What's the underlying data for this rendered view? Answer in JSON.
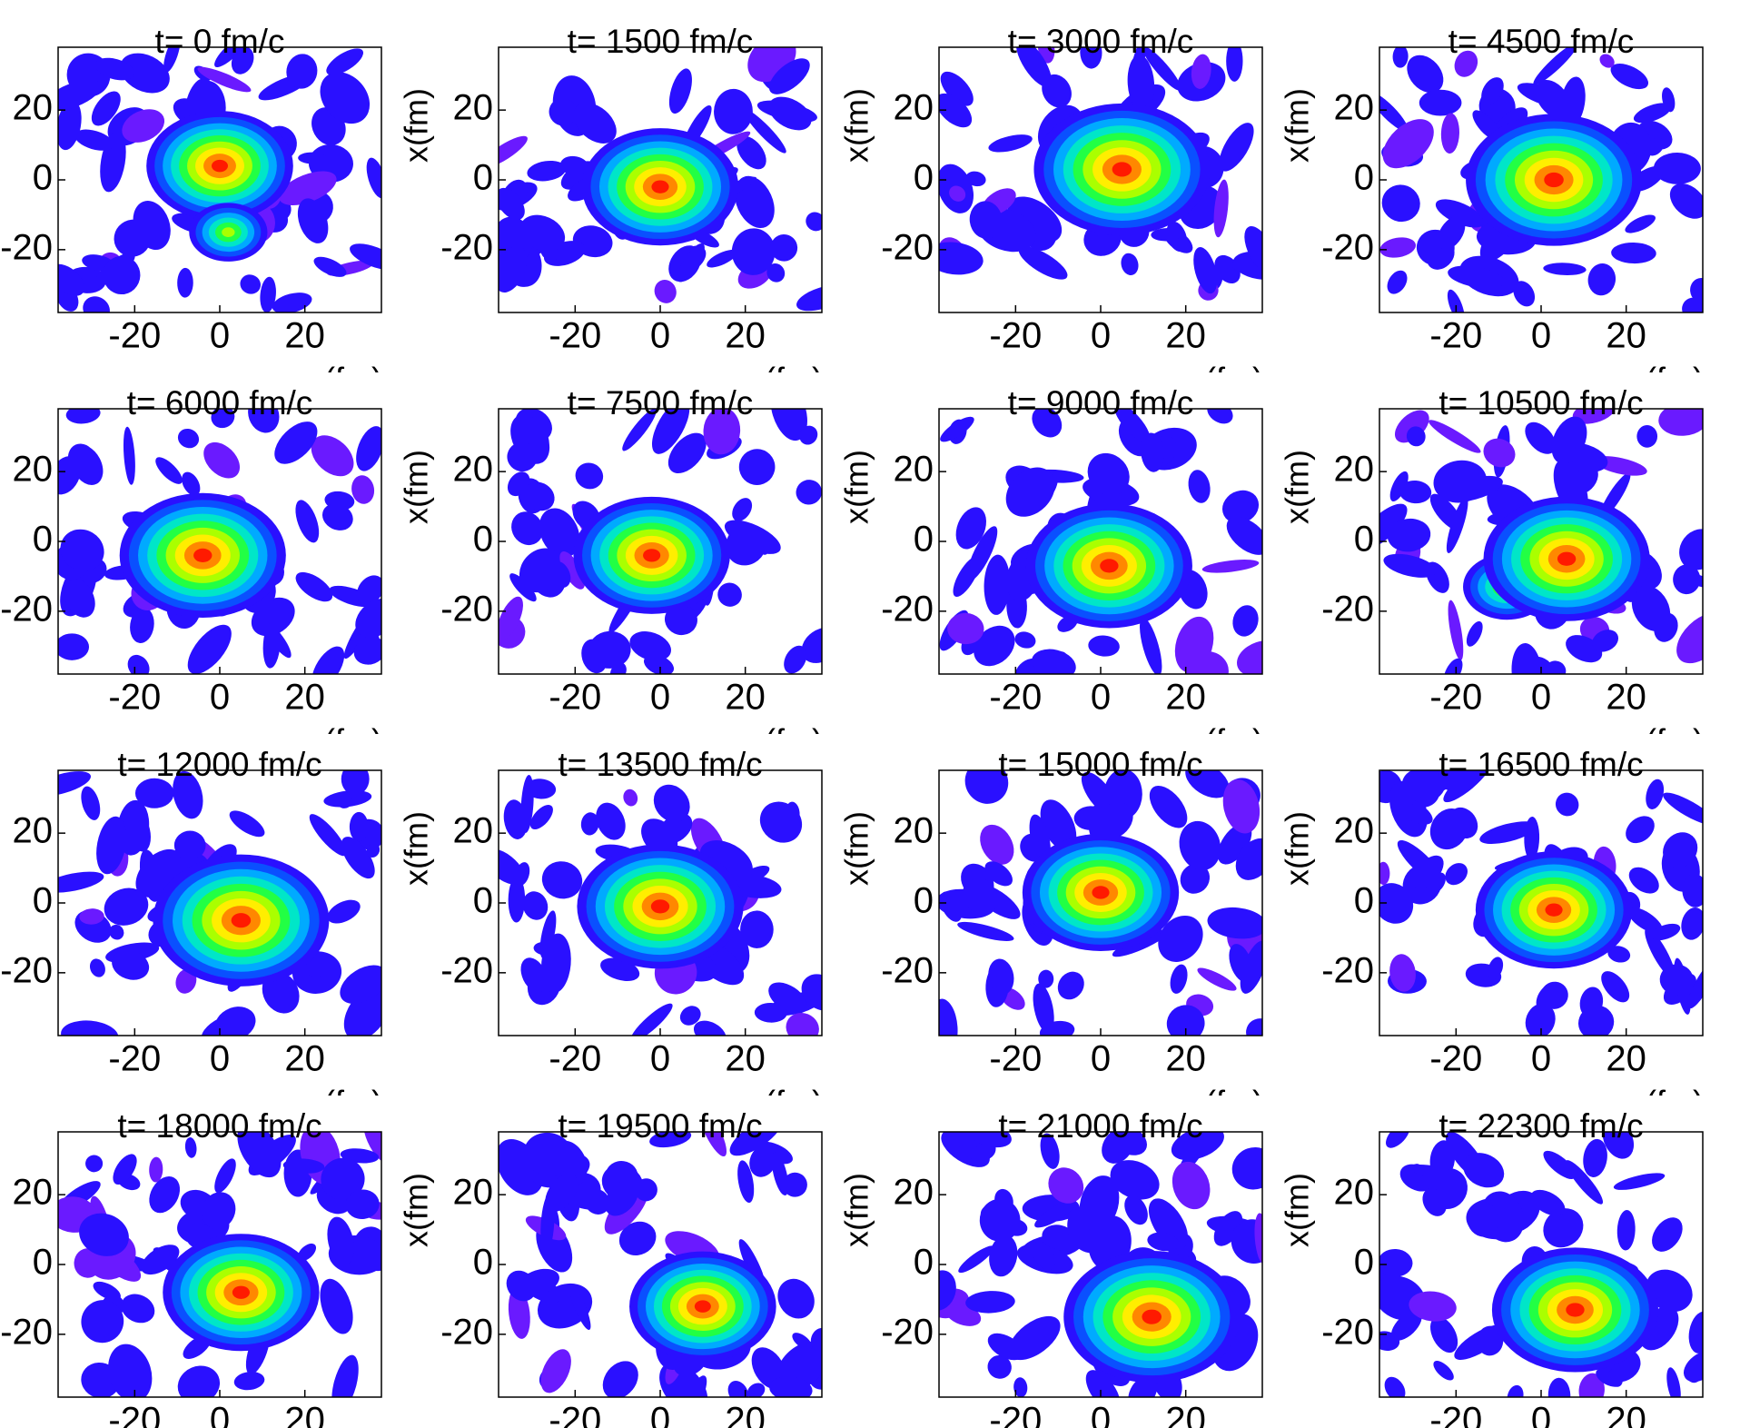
{
  "chart_data": [
    {
      "type": "contour",
      "title": "t= 0 fm/c",
      "xlabel": "z(fm)",
      "xlim": [
        -38,
        38
      ],
      "ylim": [
        -38,
        38
      ],
      "xticks": [
        -20,
        0,
        20
      ],
      "yticks": [
        -20,
        0,
        20
      ],
      "peaks": [
        {
          "x": 0,
          "y": 4,
          "r": 15
        },
        {
          "x": 2,
          "y": -15,
          "r": 8
        }
      ]
    },
    {
      "type": "contour",
      "title": "t= 1500 fm/c",
      "xlabel": "z(fm)",
      "ylabel": "x(fm)",
      "xlim": [
        -38,
        38
      ],
      "ylim": [
        -38,
        38
      ],
      "xticks": [
        -20,
        0,
        20
      ],
      "yticks": [
        -20,
        0,
        20
      ],
      "peaks": [
        {
          "x": 0,
          "y": -2,
          "r": 16
        }
      ]
    },
    {
      "type": "contour",
      "title": "t= 3000 fm/c",
      "xlabel": "z(fm)",
      "ylabel": "x(fm)",
      "xlim": [
        -38,
        38
      ],
      "ylim": [
        -38,
        38
      ],
      "xticks": [
        -20,
        0,
        20
      ],
      "yticks": [
        -20,
        0,
        20
      ],
      "peaks": [
        {
          "x": 5,
          "y": 3,
          "r": 18
        }
      ]
    },
    {
      "type": "contour",
      "title": "t= 4500 fm/c",
      "xlabel": "z(fm)",
      "ylabel": "x(fm)",
      "xlim": [
        -38,
        38
      ],
      "ylim": [
        -38,
        38
      ],
      "xticks": [
        -20,
        0,
        20
      ],
      "yticks": [
        -20,
        0,
        20
      ],
      "peaks": [
        {
          "x": 3,
          "y": 0,
          "r": 18
        }
      ]
    },
    {
      "type": "contour",
      "title": "t= 6000 fm/c",
      "xlabel": "z(fm)",
      "xlim": [
        -38,
        38
      ],
      "ylim": [
        -38,
        38
      ],
      "xticks": [
        -20,
        0,
        20
      ],
      "yticks": [
        -20,
        0,
        20
      ],
      "peaks": [
        {
          "x": -4,
          "y": -4,
          "r": 17
        }
      ]
    },
    {
      "type": "contour",
      "title": "t= 7500 fm/c",
      "xlabel": "z(fm)",
      "ylabel": "x(fm)",
      "xlim": [
        -38,
        38
      ],
      "ylim": [
        -38,
        38
      ],
      "xticks": [
        -20,
        0,
        20
      ],
      "yticks": [
        -20,
        0,
        20
      ],
      "peaks": [
        {
          "x": -2,
          "y": -4,
          "r": 16
        }
      ]
    },
    {
      "type": "contour",
      "title": "t= 9000 fm/c",
      "xlabel": "z(fm)",
      "ylabel": "x(fm)",
      "xlim": [
        -38,
        38
      ],
      "ylim": [
        -38,
        38
      ],
      "xticks": [
        -20,
        0,
        20
      ],
      "yticks": [
        -20,
        0,
        20
      ],
      "peaks": [
        {
          "x": 2,
          "y": -7,
          "r": 17
        }
      ]
    },
    {
      "type": "contour",
      "title": "t= 10500 fm/c",
      "xlabel": "z(fm)",
      "ylabel": "x(fm)",
      "xlim": [
        -38,
        38
      ],
      "ylim": [
        -38,
        38
      ],
      "xticks": [
        -20,
        0,
        20
      ],
      "yticks": [
        -20,
        0,
        20
      ],
      "peaks": [
        {
          "x": -8,
          "y": -13,
          "r": 9
        },
        {
          "x": 6,
          "y": -5,
          "r": 17
        }
      ]
    },
    {
      "type": "contour",
      "title": "t= 12000 fm/c",
      "xlabel": "z(fm)",
      "xlim": [
        -38,
        38
      ],
      "ylim": [
        -38,
        38
      ],
      "xticks": [
        -20,
        0,
        20
      ],
      "yticks": [
        -20,
        0,
        20
      ],
      "peaks": [
        {
          "x": 5,
          "y": -5,
          "r": 18
        }
      ]
    },
    {
      "type": "contour",
      "title": "t= 13500 fm/c",
      "xlabel": "z(fm)",
      "ylabel": "x(fm)",
      "xlim": [
        -38,
        38
      ],
      "ylim": [
        -38,
        38
      ],
      "xticks": [
        -20,
        0,
        20
      ],
      "yticks": [
        -20,
        0,
        20
      ],
      "peaks": [
        {
          "x": 0,
          "y": -1,
          "r": 17
        }
      ]
    },
    {
      "type": "contour",
      "title": "t= 15000 fm/c",
      "xlabel": "z(fm)",
      "ylabel": "x(fm)",
      "xlim": [
        -38,
        38
      ],
      "ylim": [
        -38,
        38
      ],
      "xticks": [
        -20,
        0,
        20
      ],
      "yticks": [
        -20,
        0,
        20
      ],
      "peaks": [
        {
          "x": 0,
          "y": 3,
          "r": 16
        }
      ]
    },
    {
      "type": "contour",
      "title": "t= 16500 fm/c",
      "xlabel": "z(fm)",
      "ylabel": "x(fm)",
      "xlim": [
        -38,
        38
      ],
      "ylim": [
        -38,
        38
      ],
      "xticks": [
        -20,
        0,
        20
      ],
      "yticks": [
        -20,
        0,
        20
      ],
      "peaks": [
        {
          "x": 3,
          "y": -2,
          "r": 16
        }
      ]
    },
    {
      "type": "contour",
      "title": "t= 18000 fm/c",
      "xlim": [
        -38,
        38
      ],
      "ylim": [
        -38,
        38
      ],
      "xticks": [
        -20,
        0,
        20
      ],
      "yticks": [
        -20,
        0,
        20
      ],
      "peaks": [
        {
          "x": 5,
          "y": -8,
          "r": 16
        }
      ]
    },
    {
      "type": "contour",
      "title": "t= 19500 fm/c",
      "ylabel": "x(fm)",
      "xlim": [
        -38,
        38
      ],
      "ylim": [
        -38,
        38
      ],
      "xticks": [
        -20,
        0,
        20
      ],
      "yticks": [
        -20,
        0,
        20
      ],
      "peaks": [
        {
          "x": 10,
          "y": -12,
          "r": 15
        }
      ]
    },
    {
      "type": "contour",
      "title": "t= 21000 fm/c",
      "ylabel": "x(fm)",
      "xlim": [
        -38,
        38
      ],
      "ylim": [
        -38,
        38
      ],
      "xticks": [
        -20,
        0,
        20
      ],
      "yticks": [
        -20,
        0,
        20
      ],
      "peaks": [
        {
          "x": 12,
          "y": -15,
          "r": 18
        }
      ]
    },
    {
      "type": "contour",
      "title": "t= 22300 fm/c",
      "ylabel": "x(fm)",
      "xlim": [
        -38,
        38
      ],
      "ylim": [
        -38,
        38
      ],
      "xticks": [
        -20,
        0,
        20
      ],
      "yticks": [
        -20,
        0,
        20
      ],
      "peaks": [
        {
          "x": 8,
          "y": -13,
          "r": 17
        }
      ]
    }
  ]
}
